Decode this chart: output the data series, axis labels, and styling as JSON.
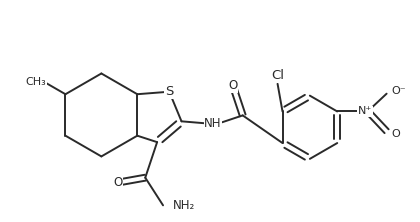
{
  "bg_color": "#ffffff",
  "line_color": "#2a2a2a",
  "line_width": 1.4,
  "font_size": 8.5,
  "figsize": [
    4.2,
    2.22
  ],
  "dpi": 100,
  "xlim": [
    0,
    420
  ],
  "ylim": [
    0,
    222
  ]
}
